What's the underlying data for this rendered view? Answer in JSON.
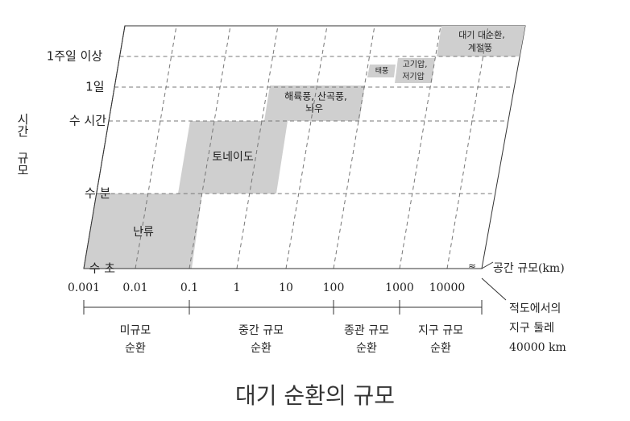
{
  "title": "대기 순환의 규모",
  "y_axis": {
    "label": "시간 규모",
    "ticks": [
      "1주일 이상",
      "1일",
      "수 시간",
      "수 분",
      "수 초"
    ]
  },
  "x_axis": {
    "label": "공간 규모(km)",
    "ticks": [
      "0.001",
      "0.01",
      "0.1",
      "1",
      "10",
      "100",
      "1000",
      "10000"
    ],
    "note": [
      "적도에서의",
      "지구 둘레",
      "40000 km"
    ]
  },
  "scales": [
    {
      "lines": [
        "미규모",
        "순환"
      ]
    },
    {
      "lines": [
        "중간 규모",
        "순환"
      ]
    },
    {
      "lines": [
        "종관 규모",
        "순환"
      ]
    },
    {
      "lines": [
        "지구 규모",
        "순환"
      ]
    }
  ],
  "phenomena": [
    {
      "lines": [
        "난류"
      ]
    },
    {
      "lines": [
        "토네이도"
      ]
    },
    {
      "lines": [
        "해륙풍, 산곡풍,",
        "뇌우"
      ]
    },
    {
      "lines": [
        "태풍"
      ]
    },
    {
      "lines": [
        "고기압,",
        "저기압"
      ]
    },
    {
      "lines": [
        "대기 대순환,",
        "계절풍"
      ]
    }
  ]
}
